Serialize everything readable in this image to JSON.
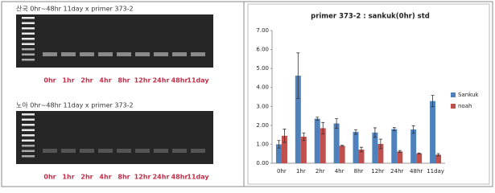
{
  "gels": [
    {
      "title": "산국 0hr~48hr 11day x primer 373-2",
      "lanes": [
        "0hr",
        "1hr",
        "2hr",
        "4hr",
        "8hr",
        "12hr",
        "24hr",
        "48hr",
        "11day"
      ]
    },
    {
      "title": "노아 0hr~48hr 11day x primer 373-2",
      "lanes": [
        "0hr",
        "1hr",
        "2hr",
        "4hr",
        "8hr",
        "12hr",
        "24hr",
        "48hr",
        "11day"
      ]
    }
  ],
  "chart_data": {
    "type": "bar",
    "title": "primer 373-2 : sankuk(0hr) std",
    "categories": [
      "0hr",
      "1hr",
      "2hr",
      "4hr",
      "8hr",
      "12hr",
      "24hr",
      "48hr",
      "11day"
    ],
    "series": [
      {
        "name": "Sankuk",
        "color": "#4f81bd",
        "values": [
          1.0,
          4.62,
          2.35,
          2.1,
          1.65,
          1.62,
          1.8,
          1.78,
          3.28
        ],
        "errors": [
          0.2,
          1.2,
          0.08,
          0.25,
          0.12,
          0.25,
          0.08,
          0.2,
          0.3
        ]
      },
      {
        "name": "noah",
        "color": "#c0504d",
        "values": [
          1.45,
          1.4,
          1.85,
          0.92,
          0.72,
          1.02,
          0.62,
          0.52,
          0.45
        ],
        "errors": [
          0.35,
          0.2,
          0.3,
          0.03,
          0.12,
          0.25,
          0.05,
          0.02,
          0.06
        ]
      }
    ],
    "ylim": [
      0,
      7
    ],
    "yticks": [
      {
        "value": 0,
        "label": "0.00"
      },
      {
        "value": 1,
        "label": "1.00"
      },
      {
        "value": 2,
        "label": "2.00"
      },
      {
        "value": 3,
        "label": "3.00"
      },
      {
        "value": 4,
        "label": "4.00"
      },
      {
        "value": 5,
        "label": "5.00"
      },
      {
        "value": 6,
        "label": "6.00"
      },
      {
        "value": 7,
        "label": "7.00"
      }
    ],
    "legend": "right"
  }
}
